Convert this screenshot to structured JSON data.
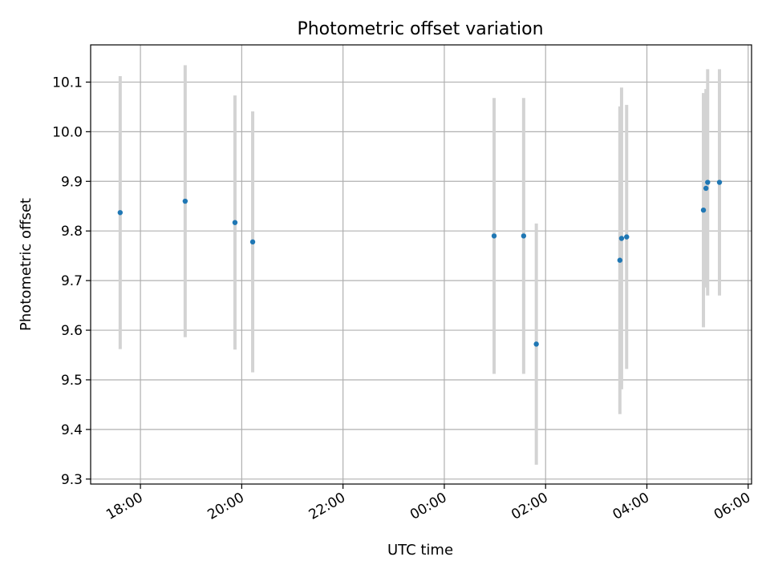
{
  "chart_data": {
    "type": "scatter",
    "title": "Photometric offset variation",
    "xlabel": "UTC time",
    "ylabel": "Photometric offset",
    "x_ticks": [
      "18:00",
      "20:00",
      "22:00",
      "00:00",
      "02:00",
      "04:00",
      "06:00"
    ],
    "y_ticks": [
      "9.3",
      "9.4",
      "9.5",
      "9.6",
      "9.7",
      "9.8",
      "9.9",
      "10.0",
      "10.1"
    ],
    "xlim": [
      "17:01",
      "06:04"
    ],
    "ylim": [
      9.29,
      10.175
    ],
    "grid": true,
    "marker_color": "#1f77b4",
    "errorbar_color": "#d3d3d3",
    "points": [
      {
        "x": "17:36",
        "y": 9.837,
        "err": 0.275
      },
      {
        "x": "18:53",
        "y": 9.86,
        "err": 0.274
      },
      {
        "x": "19:52",
        "y": 9.817,
        "err": 0.256
      },
      {
        "x": "20:13",
        "y": 9.778,
        "err": 0.263
      },
      {
        "x": "00:59",
        "y": 9.79,
        "err": 0.278
      },
      {
        "x": "01:34",
        "y": 9.79,
        "err": 0.278
      },
      {
        "x": "01:49",
        "y": 9.572,
        "err": 0.243
      },
      {
        "x": "03:28",
        "y": 9.741,
        "err": 0.31
      },
      {
        "x": "03:30",
        "y": 9.785,
        "err": 0.304
      },
      {
        "x": "03:36",
        "y": 9.788,
        "err": 0.266
      },
      {
        "x": "05:07",
        "y": 9.842,
        "err": 0.236
      },
      {
        "x": "05:10",
        "y": 9.886,
        "err": 0.2
      },
      {
        "x": "05:12",
        "y": 9.898,
        "err": 0.228
      },
      {
        "x": "05:26",
        "y": 9.898,
        "err": 0.228
      }
    ]
  }
}
